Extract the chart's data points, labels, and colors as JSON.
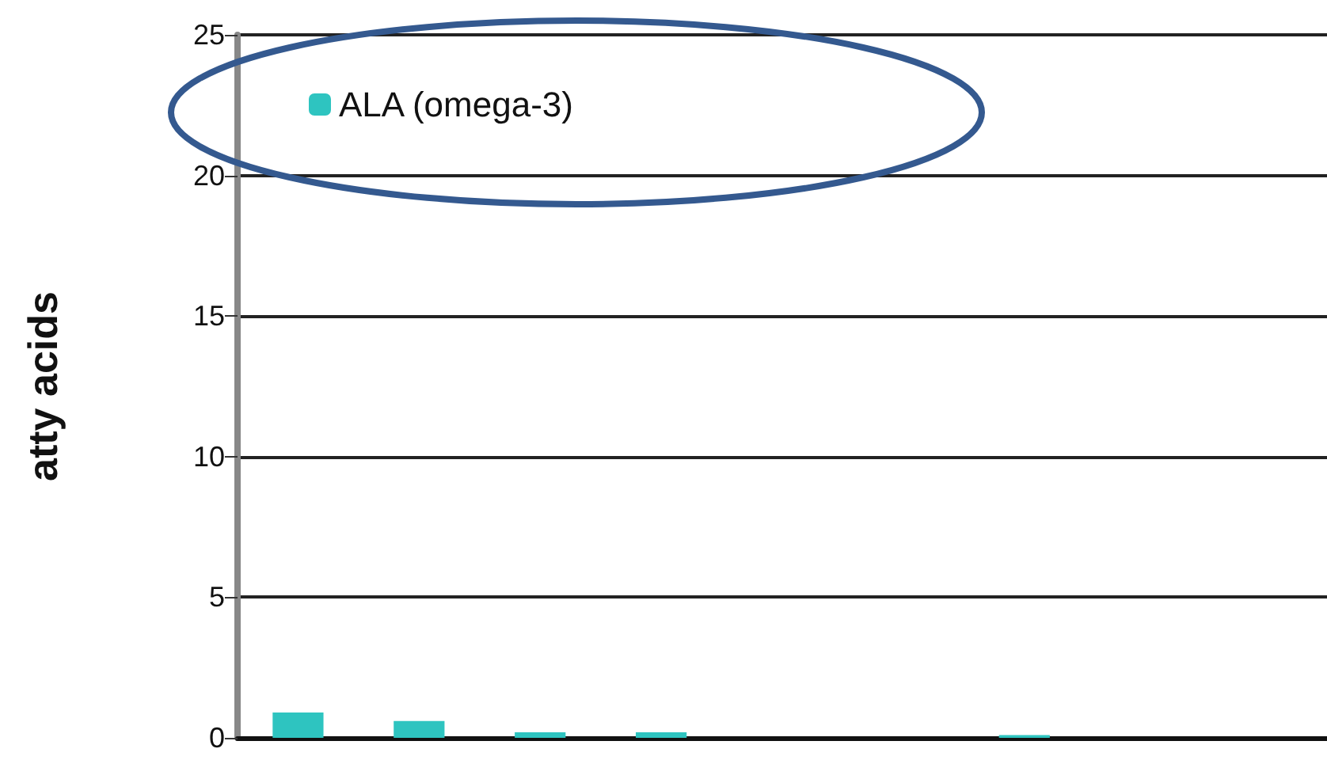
{
  "chart_data": {
    "type": "bar",
    "ylabel": "atty acids",
    "categories": [
      null,
      null,
      null,
      null,
      null,
      null,
      null,
      null,
      null
    ],
    "series": [
      {
        "name": "ALA (omega-3)",
        "color": "#2ec4c0",
        "values": [
          0.9,
          0.6,
          0.2,
          0.2,
          0,
          0,
          0.1,
          0,
          0
        ]
      }
    ],
    "ylim": [
      0,
      25
    ],
    "yticks": [
      0,
      5,
      10,
      15,
      20,
      25
    ],
    "grid": "y",
    "legend": "top left"
  }
}
